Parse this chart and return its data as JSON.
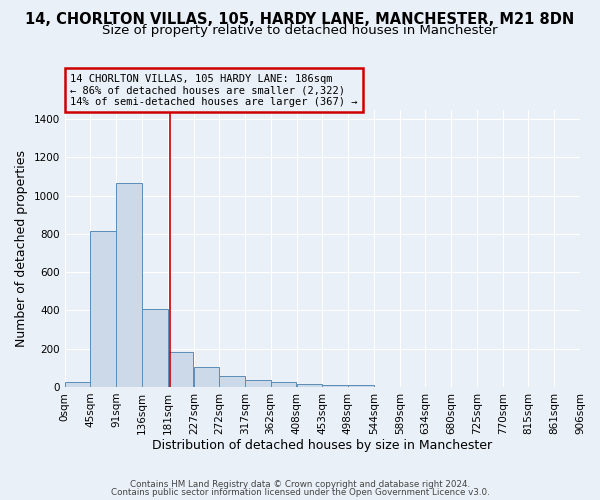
{
  "title_line1": "14, CHORLTON VILLAS, 105, HARDY LANE, MANCHESTER, M21 8DN",
  "title_line2": "Size of property relative to detached houses in Manchester",
  "xlabel": "Distribution of detached houses by size in Manchester",
  "ylabel": "Number of detached properties",
  "bin_edges": [
    0,
    45,
    91,
    136,
    181,
    227,
    272,
    317,
    362,
    408,
    453,
    498,
    544,
    589,
    634,
    680,
    725,
    770,
    815,
    861,
    906
  ],
  "bar_heights": [
    25,
    815,
    1065,
    410,
    185,
    105,
    55,
    35,
    25,
    15,
    10,
    10,
    0,
    0,
    0,
    0,
    0,
    0,
    0,
    0
  ],
  "bar_facecolor": "#ccd9e8",
  "bar_edgecolor": "#5b8db8",
  "property_size": 186,
  "vline_color": "#cc0000",
  "ylim": [
    0,
    1450
  ],
  "yticks": [
    0,
    200,
    400,
    600,
    800,
    1000,
    1200,
    1400
  ],
  "annotation_line1": "14 CHORLTON VILLAS, 105 HARDY LANE: 186sqm",
  "annotation_line2": "← 86% of detached houses are smaller (2,322)",
  "annotation_line3": "14% of semi-detached houses are larger (367) →",
  "annotation_box_color": "#cc0000",
  "footer_line1": "Contains HM Land Registry data © Crown copyright and database right 2024.",
  "footer_line2": "Contains public sector information licensed under the Open Government Licence v3.0.",
  "bg_color": "#eaf0f7",
  "grid_color": "#ffffff",
  "tick_label_size": 7.5,
  "axis_label_size": 9,
  "title1_fontsize": 10.5,
  "title2_fontsize": 9.5
}
